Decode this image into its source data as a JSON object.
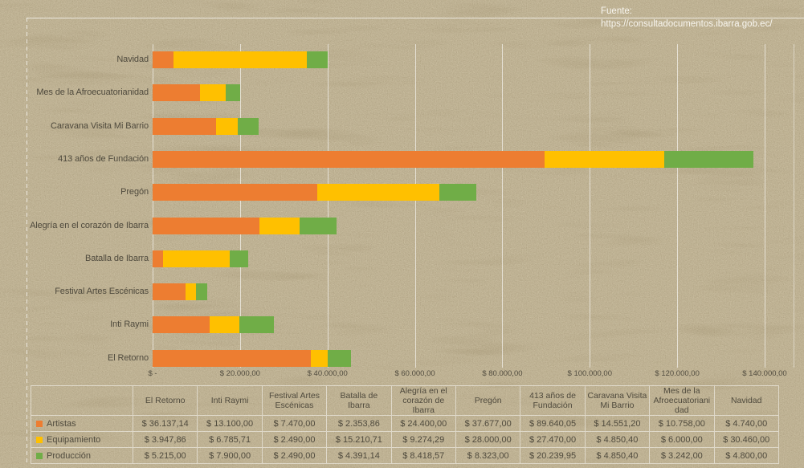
{
  "page": {
    "paper_color": "#c9bd9f",
    "text_color": "#4f4a3d"
  },
  "source": {
    "label": "Fuente:",
    "url": "https://consultadocumentos.ibarra.gob.ec/"
  },
  "chart_data": {
    "type": "bar",
    "orientation": "horizontal",
    "stacked": true,
    "grid": true,
    "legend_position": "table-left-keys",
    "xlim": [
      0,
      140000
    ],
    "x_ticks": [
      "$ -",
      "$ 20.000,00",
      "$ 40.000,00",
      "$ 60.000,00",
      "$ 80.000,00",
      "$ 100.000,00",
      "$ 120.000,00",
      "$ 140.000,00"
    ],
    "categories": [
      "El Retorno",
      "Inti Raymi",
      "Festival Artes Escénicas",
      "Batalla de Ibarra",
      "Alegría en el corazón de Ibarra",
      "Pregón",
      "413 años de Fundación",
      "Caravana Visita Mi Barrio",
      "Mes de la Afroecuatorianidad",
      "Navidad"
    ],
    "category_axis_note": "categories drawn bottom-to-top: El Retorno at bottom, Navidad at top",
    "series": [
      {
        "name": "Artistas",
        "color": "#ED7D31",
        "values": [
          36137.14,
          13100,
          7470,
          2353.86,
          24400,
          37677,
          89640.05,
          14551.2,
          10758,
          4740
        ],
        "display": [
          "$ 36.137,14",
          "$ 13.100,00",
          "$ 7.470,00",
          "$ 2.353,86",
          "$ 24.400,00",
          "$ 37.677,00",
          "$ 89.640,05",
          "$ 14.551,20",
          "$ 10.758,00",
          "$ 4.740,00"
        ]
      },
      {
        "name": "Equipamiento",
        "color": "#FFC000",
        "values": [
          3947.86,
          6785.71,
          2490,
          15210.71,
          9274.29,
          28000,
          27470,
          4850.4,
          6000,
          30460
        ],
        "display": [
          "$ 3.947,86",
          "$ 6.785,71",
          "$ 2.490,00",
          "$ 15.210,71",
          "$ 9.274,29",
          "$ 28.000,00",
          "$ 27.470,00",
          "$ 4.850,40",
          "$ 6.000,00",
          "$ 30.460,00"
        ]
      },
      {
        "name": "Producción",
        "color": "#70AD47",
        "values": [
          5215,
          7900,
          2490,
          4391.14,
          8418.57,
          8323,
          20239.95,
          4850.4,
          3242,
          4800
        ],
        "display": [
          "$ 5.215,00",
          "$ 7.900,00",
          "$ 2.490,00",
          "$ 4.391,14",
          "$ 8.418,57",
          "$ 8.323,00",
          "$ 20.239,95",
          "$ 4.850,40",
          "$ 3.242,00",
          "$ 4.800,00"
        ]
      }
    ]
  }
}
